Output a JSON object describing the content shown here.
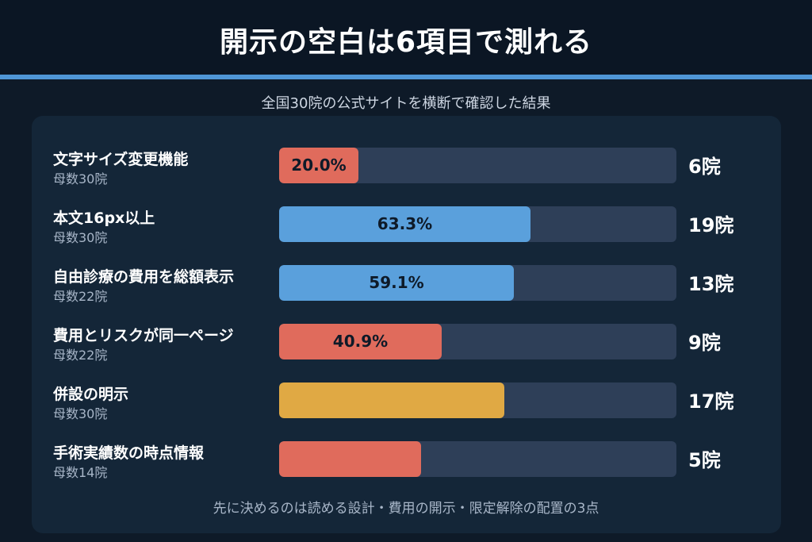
{
  "title": "開示の空白は6項目で測れる",
  "subtitle": "全国30院の公式サイトを横断で確認した結果",
  "footer": "先に決めるのは読める設計・費用の開示・限定解除の配置の3点",
  "colors": {
    "background": "#0e1a28",
    "panel": "#142638",
    "track": "#2e3f58",
    "accent": "#4f96d6",
    "red": "#e06b5c",
    "blue": "#5aa0dc",
    "yellow": "#e0a944"
  },
  "chart_data": {
    "type": "bar",
    "orientation": "horizontal",
    "xlim": [
      0,
      100
    ],
    "categories": [
      "文字サイズ変更機能",
      "本文16px以上",
      "自由診療の費用を総額表示",
      "費用とリスクが同一ページ",
      "併設の明示",
      "手術実績数の時点情報"
    ],
    "bases": [
      "母数30院",
      "母数30院",
      "母数22院",
      "母数22院",
      "母数30院",
      "母数14院"
    ],
    "values": [
      20.0,
      63.3,
      59.1,
      40.9,
      56.7,
      35.7
    ],
    "percent_labels": [
      "20.0%",
      "63.3%",
      "59.1%",
      "40.9%",
      "",
      ""
    ],
    "counts": [
      "6院",
      "19院",
      "13院",
      "9院",
      "17院",
      "5院"
    ],
    "bar_colors": [
      "#e06b5c",
      "#5aa0dc",
      "#5aa0dc",
      "#e06b5c",
      "#e0a944",
      "#e06b5c"
    ]
  }
}
